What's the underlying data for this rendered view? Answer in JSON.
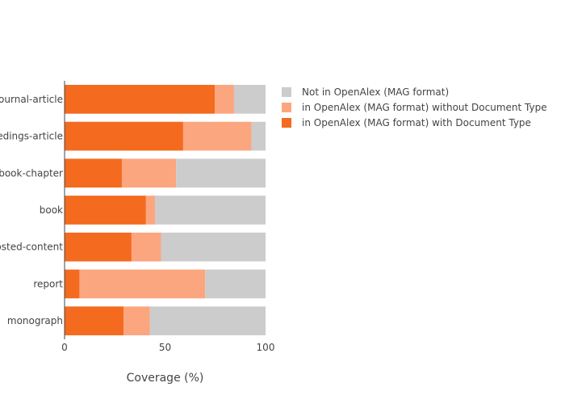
{
  "chart_data": {
    "type": "bar",
    "orientation": "horizontal",
    "stacked": true,
    "categories": [
      "journal-article",
      "proceedings-article",
      "book-chapter",
      "book",
      "posted-content",
      "report",
      "monograph"
    ],
    "series": [
      {
        "name": "in OpenAlex (MAG format) with Document Type",
        "color": "#f46a1f",
        "values": [
          74.8,
          59.0,
          28.5,
          40.5,
          33.3,
          7.4,
          29.4
        ]
      },
      {
        "name": "in OpenAlex (MAG format) without Document Type",
        "color": "#fba67f",
        "values": [
          9.5,
          34.0,
          27.0,
          4.5,
          14.7,
          62.6,
          13.0
        ]
      },
      {
        "name": "Not in OpenAlex (MAG format)",
        "color": "#cccccc",
        "values": [
          15.7,
          7.0,
          44.5,
          55.0,
          52.0,
          30.0,
          57.6
        ]
      }
    ],
    "legend_order": [
      2,
      1,
      0
    ],
    "legend_position": "top-right",
    "xlabel": "Coverage (%)",
    "ylabel": "",
    "title": "",
    "xlim": [
      0,
      100
    ],
    "xticks": [
      0,
      50,
      100
    ],
    "grid": false
  }
}
